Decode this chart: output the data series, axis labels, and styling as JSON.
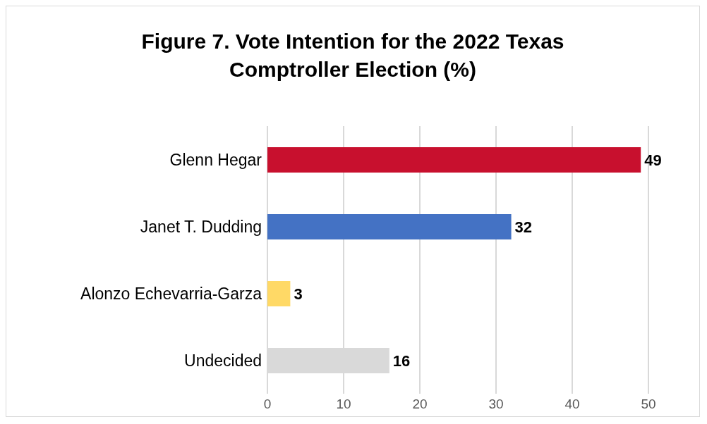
{
  "chart_data": {
    "type": "bar",
    "orientation": "horizontal",
    "title": "Figure 7. Vote Intention for the 2022 Texas Comptroller Election (%)",
    "categories": [
      "Glenn Hegar",
      "Janet T. Dudding",
      "Alonzo Echevarria-Garza",
      "Undecided"
    ],
    "values": [
      49,
      32,
      3,
      16
    ],
    "colors": [
      "#c8102e",
      "#4472c4",
      "#ffd966",
      "#d9d9d9"
    ],
    "xlim": [
      0,
      50
    ],
    "xticks": [
      0,
      10,
      20,
      30,
      40,
      50
    ],
    "grid": "x",
    "data_labels": true
  }
}
